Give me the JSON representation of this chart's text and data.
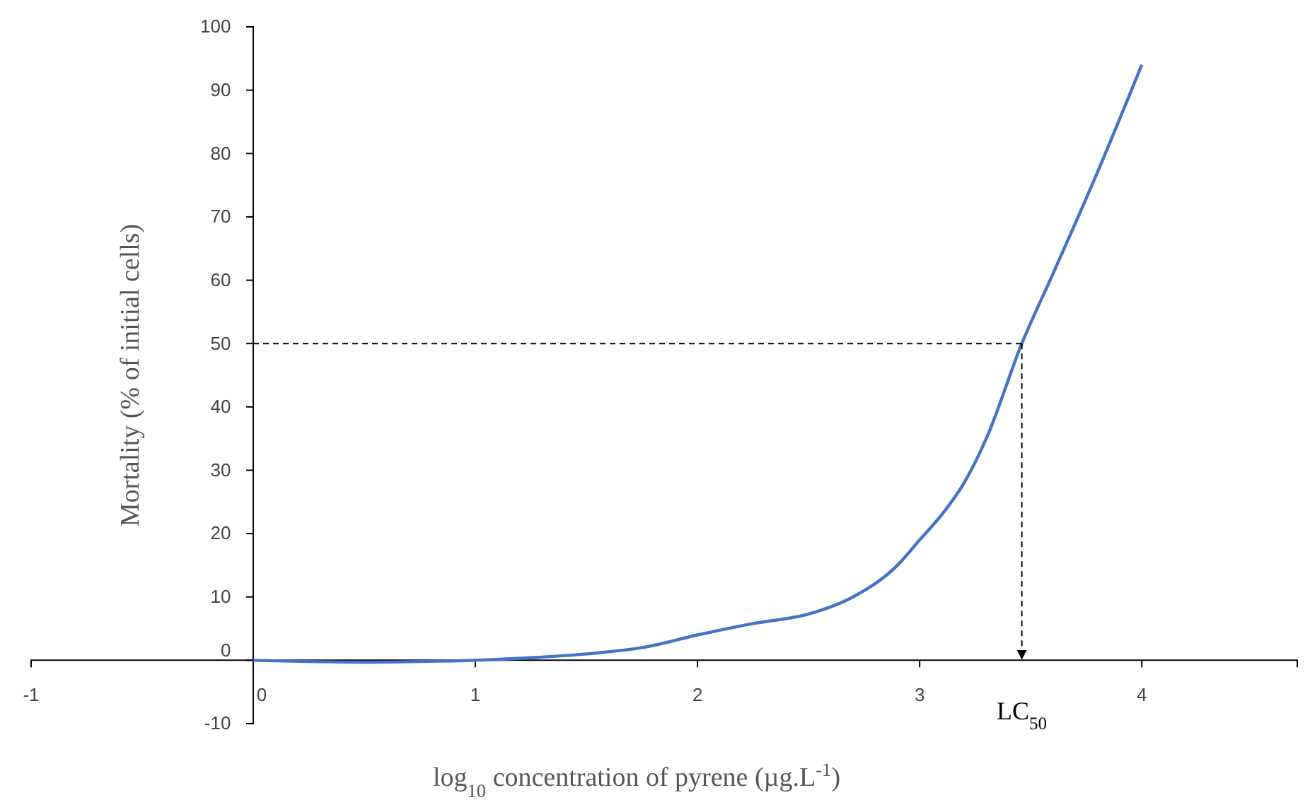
{
  "chart_data": {
    "type": "line",
    "xlabel": "log$_{10}$ concentration of pyrene (µg.L$^{-1}$)",
    "ylabel": "Mortality (% of initial cells)",
    "xlim": [
      -1,
      4.7
    ],
    "xticks": [
      -1,
      0,
      1,
      2,
      3,
      4
    ],
    "ylim": [
      -10,
      100
    ],
    "yticks": [
      -10,
      0,
      10,
      20,
      30,
      40,
      50,
      60,
      70,
      80,
      90,
      100
    ],
    "x": [
      0,
      0.25,
      0.5,
      0.75,
      1,
      1.25,
      1.5,
      1.75,
      2,
      2.25,
      2.5,
      2.7,
      2.9,
      3,
      3.1,
      3.2,
      3.3,
      3.46,
      3.6,
      3.8,
      4
    ],
    "series": [
      {
        "color": "#4472c4",
        "values": [
          0,
          -0.2,
          -0.3,
          -0.2,
          0,
          0.4,
          1,
          2,
          4,
          5.8,
          7.3,
          10,
          15,
          19,
          23,
          28,
          35,
          50,
          61,
          77,
          94
        ]
      }
    ],
    "ref_lines": [
      {
        "axis": "y",
        "value": 50,
        "line_style": "dashed"
      },
      {
        "axis": "x",
        "value": 3.46,
        "label": "LC$_{50}$",
        "line_style": "dashed"
      }
    ],
    "grid": false,
    "marker": "none",
    "line_style": "solid"
  }
}
